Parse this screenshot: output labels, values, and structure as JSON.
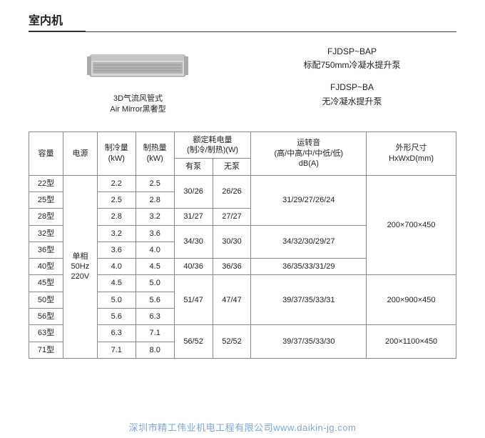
{
  "section_title": "室内机",
  "product": {
    "line1": "3D气流风管式",
    "line2": "Air Mirror黑奢型"
  },
  "right_info": {
    "block1_line1": "FJDSP~BAP",
    "block1_line2": "标配750mm冷凝水提升泵",
    "block2_line1": "FJDSP~BA",
    "block2_line2": "无冷凝水提升泵"
  },
  "headers": {
    "capacity": "容量",
    "power": "电源",
    "cooling": "制冷量\n(kW)",
    "heating": "制热量\n(kW)",
    "rated_group": "额定耗电量\n(制冷/制热)(W)",
    "with_pump": "有泵",
    "no_pump": "无泵",
    "sound": "运转音\n(高/中高/中/中低/低)\ndB(A)",
    "dimensions": "外形尺寸\nHxWxD(mm)"
  },
  "power_cell": "单相\n50Hz\n220V",
  "rows": [
    {
      "cap": "22型",
      "cool": "2.2",
      "heat": "2.5"
    },
    {
      "cap": "25型",
      "cool": "2.5",
      "heat": "2.8"
    },
    {
      "cap": "28型",
      "cool": "2.8",
      "heat": "3.2"
    },
    {
      "cap": "32型",
      "cool": "3.2",
      "heat": "3.6"
    },
    {
      "cap": "36型",
      "cool": "3.6",
      "heat": "4.0"
    },
    {
      "cap": "40型",
      "cool": "4.0",
      "heat": "4.5"
    },
    {
      "cap": "45型",
      "cool": "4.5",
      "heat": "5.0"
    },
    {
      "cap": "50型",
      "cool": "5.0",
      "heat": "5.6"
    },
    {
      "cap": "56型",
      "cool": "5.6",
      "heat": "6.3"
    },
    {
      "cap": "63型",
      "cool": "6.3",
      "heat": "7.1"
    },
    {
      "cap": "71型",
      "cool": "7.1",
      "heat": "8.0"
    }
  ],
  "merged": {
    "pump_22_25": "30/26",
    "nopump_22_25": "26/26",
    "pump_28": "31/27",
    "nopump_28": "27/27",
    "pump_32_36": "34/30",
    "nopump_32_36": "30/30",
    "pump_40": "40/36",
    "nopump_40": "36/36",
    "pump_45_56": "51/47",
    "nopump_45_56": "47/47",
    "pump_63_71": "56/52",
    "nopump_63_71": "52/52",
    "sound_22_28": "31/29/27/26/24",
    "sound_32_36": "34/32/30/29/27",
    "sound_40": "36/35/33/31/29",
    "sound_45_56": "39/37/35/33/31",
    "sound_63_71": "39/37/35/33/30",
    "dim_22_40": "200×700×450",
    "dim_45_56": "200×900×450",
    "dim_63_71": "200×1100×450"
  },
  "watermark": "深圳市精工伟业机电工程有限公司www.daikin-jg.com",
  "colors": {
    "text": "#222222",
    "border": "#888888",
    "watermark": "#7fa7d4",
    "unit_body": "#d8d8d8",
    "unit_front": "#b4b4b4"
  }
}
